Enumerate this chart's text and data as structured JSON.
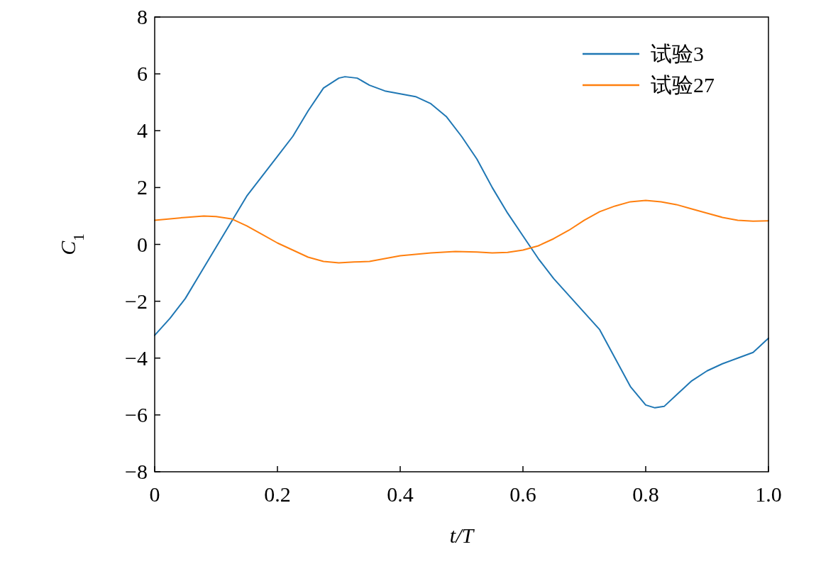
{
  "chart_data": {
    "type": "line",
    "xlabel": "t/T",
    "ylabel": "C$_{1}$",
    "xlim": [
      0,
      1.0
    ],
    "ylim": [
      -8,
      8
    ],
    "xticks": [
      {
        "value": 0,
        "label": "0"
      },
      0.2,
      0.4,
      0.6,
      0.8,
      {
        "value": 1.0,
        "label": "1.0"
      }
    ],
    "yticks": [
      -8,
      -6,
      -4,
      -2,
      0,
      2,
      4,
      6,
      8
    ],
    "grid": false,
    "legend": "top right",
    "marker": "none",
    "line_style": "solid",
    "series": [
      {
        "name": "试验3",
        "color": "#1f77b4",
        "x": [
          0,
          0.025,
          0.05,
          0.075,
          0.1,
          0.125,
          0.15,
          0.175,
          0.2,
          0.225,
          0.25,
          0.275,
          0.3,
          0.31,
          0.33,
          0.35,
          0.375,
          0.4,
          0.425,
          0.45,
          0.475,
          0.5,
          0.525,
          0.55,
          0.575,
          0.6,
          0.625,
          0.65,
          0.675,
          0.7,
          0.725,
          0.75,
          0.775,
          0.8,
          0.815,
          0.83,
          0.85,
          0.875,
          0.9,
          0.925,
          0.95,
          0.975,
          1.0
        ],
        "values": [
          -3.2,
          -2.6,
          -1.9,
          -1.0,
          -0.1,
          0.8,
          1.7,
          2.4,
          3.1,
          3.8,
          4.7,
          5.5,
          5.85,
          5.9,
          5.85,
          5.6,
          5.4,
          5.3,
          5.2,
          4.95,
          4.5,
          3.8,
          3.0,
          2.0,
          1.1,
          0.3,
          -0.5,
          -1.2,
          -1.8,
          -2.4,
          -3.0,
          -4.0,
          -5.0,
          -5.65,
          -5.75,
          -5.7,
          -5.3,
          -4.8,
          -4.45,
          -4.2,
          -4.0,
          -3.8,
          -3.3
        ]
      },
      {
        "name": "试验27",
        "color": "#ff7f0e",
        "x": [
          0,
          0.05,
          0.08,
          0.1,
          0.125,
          0.15,
          0.175,
          0.2,
          0.225,
          0.25,
          0.275,
          0.3,
          0.325,
          0.35,
          0.375,
          0.4,
          0.45,
          0.49,
          0.525,
          0.55,
          0.575,
          0.6,
          0.625,
          0.65,
          0.675,
          0.7,
          0.725,
          0.75,
          0.775,
          0.8,
          0.825,
          0.85,
          0.875,
          0.9,
          0.925,
          0.95,
          0.975,
          1.0
        ],
        "values": [
          0.85,
          0.95,
          1.0,
          0.98,
          0.9,
          0.65,
          0.35,
          0.05,
          -0.2,
          -0.45,
          -0.6,
          -0.65,
          -0.62,
          -0.6,
          -0.5,
          -0.4,
          -0.3,
          -0.25,
          -0.27,
          -0.3,
          -0.28,
          -0.2,
          -0.05,
          0.2,
          0.5,
          0.85,
          1.15,
          1.35,
          1.5,
          1.55,
          1.5,
          1.4,
          1.25,
          1.1,
          0.95,
          0.85,
          0.82,
          0.83
        ]
      }
    ]
  }
}
